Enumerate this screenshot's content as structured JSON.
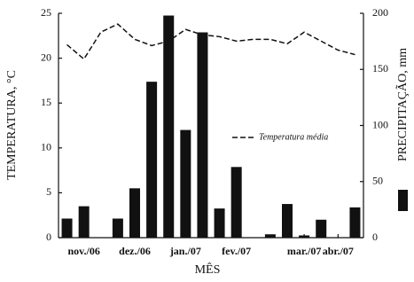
{
  "chart_data": {
    "type": "bar",
    "xlabel": "MÊS",
    "ylabel": "TEMPERATURA, °C",
    "y2label": "PRECIPITAÇÃO, mm",
    "categories": [
      null,
      "nov./06",
      null,
      null,
      "dez./06",
      null,
      null,
      "jan./07",
      null,
      null,
      "fev./07",
      null,
      null,
      null,
      "mar./07",
      null,
      "abr./07",
      null
    ],
    "series": [
      {
        "name": "Temperatura média",
        "type": "line",
        "color": "#111",
        "axis": "y",
        "values": [
          21.5,
          19.9,
          22.9,
          23.8,
          22.1,
          21.4,
          21.9,
          23.2,
          22.6,
          22.4,
          21.9,
          22.1,
          22.1,
          21.6,
          22.9,
          21.9,
          20.9,
          20.4
        ]
      },
      {
        "type": "bar",
        "color": "#111",
        "axis": "y2",
        "values": [
          17,
          28,
          0,
          17,
          44,
          139,
          198,
          96,
          183,
          26,
          63,
          0,
          3,
          30,
          2,
          16,
          0,
          27
        ]
      }
    ],
    "ylim": [
      0,
      25
    ],
    "yticks": [
      0,
      5,
      10,
      15,
      20,
      25
    ],
    "y2lim": [
      0,
      200
    ],
    "y2ticks": [
      0,
      50,
      100,
      150,
      200
    ]
  }
}
